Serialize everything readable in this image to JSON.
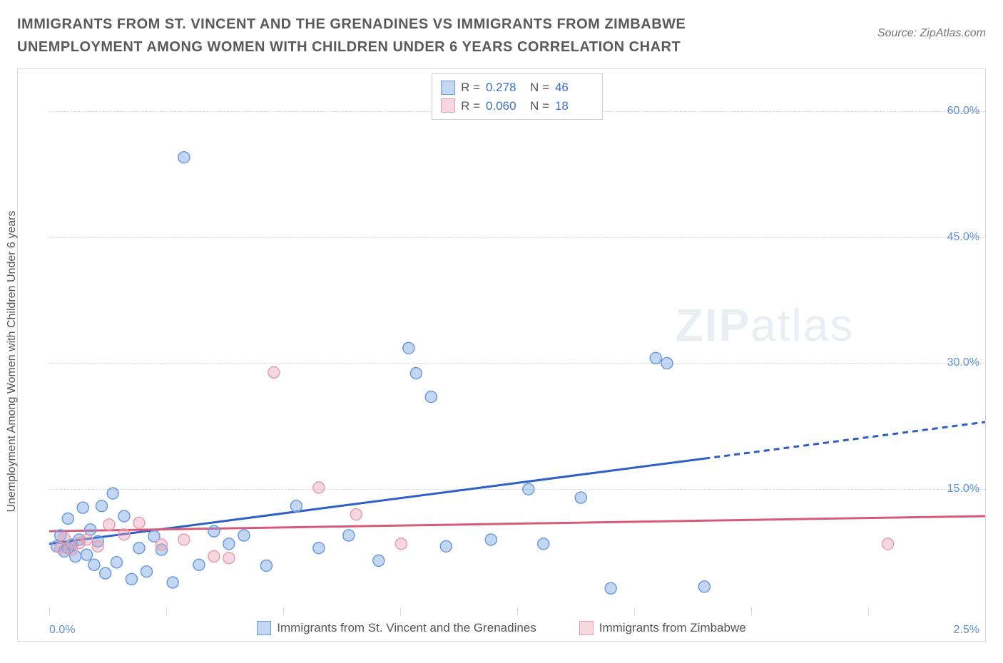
{
  "title": "IMMIGRANTS FROM ST. VINCENT AND THE GRENADINES VS IMMIGRANTS FROM ZIMBABWE UNEMPLOYMENT AMONG WOMEN WITH CHILDREN UNDER 6 YEARS CORRELATION CHART",
  "source": "Source: ZipAtlas.com",
  "y_axis_label": "Unemployment Among Women with Children Under 6 years",
  "watermark_bold": "ZIP",
  "watermark_thin": "atlas",
  "x_corner_left": "0.0%",
  "x_corner_right": "2.5%",
  "chart": {
    "type": "scatter",
    "xlim": [
      0.0,
      2.5
    ],
    "ylim": [
      0.0,
      65.0
    ],
    "y_ticks": [
      15.0,
      30.0,
      45.0,
      60.0
    ],
    "y_tick_labels": [
      "15.0%",
      "30.0%",
      "45.0%",
      "60.0%"
    ],
    "x_grid_positions": [
      0.0,
      0.3125,
      0.625,
      0.9375,
      1.25,
      1.5625,
      1.875,
      2.1875,
      2.5
    ],
    "background_color": "#ffffff",
    "grid_color": "#d8d8d8",
    "marker_radius": 8,
    "marker_fill_opacity": 0.4,
    "marker_stroke_width": 1.5,
    "series": [
      {
        "name": "Immigrants from St. Vincent and the Grenadines",
        "color": "#6a9be0",
        "line_color": "#2e5fc4",
        "R": "0.278",
        "N": "46",
        "trend": {
          "y_at_xmin": 8.5,
          "y_at_xmax": 23.0,
          "solid_until_x": 1.75
        },
        "points": [
          [
            0.02,
            8.2
          ],
          [
            0.03,
            9.5
          ],
          [
            0.04,
            7.6
          ],
          [
            0.05,
            8.0
          ],
          [
            0.05,
            11.5
          ],
          [
            0.06,
            8.4
          ],
          [
            0.07,
            7.0
          ],
          [
            0.08,
            9.0
          ],
          [
            0.09,
            12.8
          ],
          [
            0.1,
            7.2
          ],
          [
            0.11,
            10.2
          ],
          [
            0.12,
            6.0
          ],
          [
            0.13,
            8.8
          ],
          [
            0.14,
            13.0
          ],
          [
            0.15,
            5.0
          ],
          [
            0.17,
            14.5
          ],
          [
            0.18,
            6.3
          ],
          [
            0.2,
            11.8
          ],
          [
            0.22,
            4.3
          ],
          [
            0.24,
            8.0
          ],
          [
            0.26,
            5.2
          ],
          [
            0.28,
            9.4
          ],
          [
            0.3,
            7.8
          ],
          [
            0.33,
            3.9
          ],
          [
            0.36,
            54.5
          ],
          [
            0.4,
            6.0
          ],
          [
            0.44,
            10.0
          ],
          [
            0.48,
            8.5
          ],
          [
            0.52,
            9.5
          ],
          [
            0.58,
            5.9
          ],
          [
            0.66,
            13.0
          ],
          [
            0.72,
            8.0
          ],
          [
            0.8,
            9.5
          ],
          [
            0.88,
            6.5
          ],
          [
            0.96,
            31.8
          ],
          [
            0.98,
            28.8
          ],
          [
            1.02,
            26.0
          ],
          [
            1.06,
            8.2
          ],
          [
            1.18,
            9.0
          ],
          [
            1.28,
            15.0
          ],
          [
            1.32,
            8.5
          ],
          [
            1.42,
            14.0
          ],
          [
            1.5,
            3.2
          ],
          [
            1.62,
            30.6
          ],
          [
            1.65,
            30.0
          ],
          [
            1.75,
            3.4
          ]
        ]
      },
      {
        "name": "Immigrants from Zimbabwe",
        "color": "#e79db0",
        "line_color": "#d85a7a",
        "R": "0.060",
        "N": "18",
        "trend": {
          "y_at_xmin": 10.0,
          "y_at_xmax": 11.8,
          "solid_until_x": 2.5
        },
        "points": [
          [
            0.03,
            8.0
          ],
          [
            0.04,
            9.2
          ],
          [
            0.06,
            7.8
          ],
          [
            0.08,
            8.6
          ],
          [
            0.1,
            9.0
          ],
          [
            0.13,
            8.2
          ],
          [
            0.16,
            10.8
          ],
          [
            0.2,
            9.6
          ],
          [
            0.24,
            11.0
          ],
          [
            0.3,
            8.4
          ],
          [
            0.36,
            9.0
          ],
          [
            0.44,
            7.0
          ],
          [
            0.48,
            6.8
          ],
          [
            0.6,
            28.9
          ],
          [
            0.72,
            15.2
          ],
          [
            0.82,
            12.0
          ],
          [
            0.94,
            8.5
          ],
          [
            2.24,
            8.5
          ]
        ]
      }
    ]
  },
  "legend_labels": {
    "R": "R =",
    "N": "N ="
  }
}
